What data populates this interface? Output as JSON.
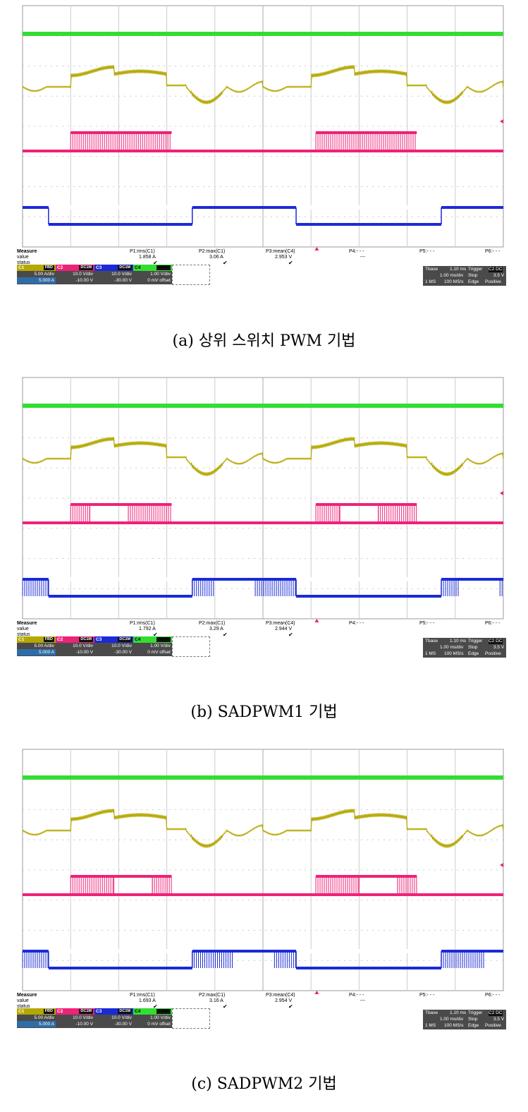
{
  "chart_data": [
    {
      "type": "line",
      "caption": "(a) 상위 스위치 PWM 기법",
      "series": [
        {
          "name": "C4",
          "color": "#33dd33",
          "description": "flat green trace"
        },
        {
          "name": "C1",
          "color": "#b5a800",
          "description": "ripple current trace"
        },
        {
          "name": "C2",
          "color": "#ee2277",
          "description": "PWM pulse trace, pulses during 0.1-0.31 and 0.61-0.82 of width"
        },
        {
          "name": "C3",
          "color": "#1a2bd6",
          "description": "square wave, low 0.05-0.35 and 0.57-0.87"
        }
      ],
      "measure": {
        "label": "Measure",
        "row_value": "value",
        "row_status": "status",
        "params": [
          {
            "name": "P1:rms(C1)",
            "value": "1.858 A",
            "check": "✔"
          },
          {
            "name": "P2:max(C1)",
            "value": "3.06 A",
            "check": "✔"
          },
          {
            "name": "P3:mean(C4)",
            "value": "2.953 V",
            "check": "✔"
          },
          {
            "name": "P4:- - -",
            "value": "---",
            "check": ""
          },
          {
            "name": "P5:- - -",
            "value": "",
            "check": ""
          },
          {
            "name": "P6:- - -",
            "value": "",
            "check": ""
          }
        ]
      },
      "channels": [
        {
          "id": "C1",
          "tag": "FBD",
          "scale": "5.00 A/div",
          "offset": "5.000 A",
          "color": "#b5a800"
        },
        {
          "id": "C2",
          "tag": "DC1M",
          "scale": "10.0 V/div",
          "offset": "-10.00 V",
          "color": "#ee2277"
        },
        {
          "id": "C3",
          "tag": "DC1M",
          "scale": "10.0 V/div",
          "offset": "-30.00 V",
          "color": "#1a2bd6"
        },
        {
          "id": "C4",
          "tag": "DC1M",
          "scale": "1.00 V/div",
          "offset": "0 mV offset",
          "color": "#33dd33"
        }
      ],
      "timebase": {
        "tbase_label": "Tbase",
        "tbase_value": "1.10 ms",
        "trigger_label": "Trigger",
        "trigger_tag": "C2 DC",
        "div": "1.00 ms/div",
        "mode": "Stop",
        "level": "3.5 V",
        "samples": "1 MS",
        "rate": "100 MS/s",
        "type": "Edge",
        "slope": "Positive"
      }
    },
    {
      "type": "line",
      "caption": "(b) SADPWM1 기법",
      "series": [
        {
          "name": "C4",
          "color": "#33dd33",
          "description": "flat green trace"
        },
        {
          "name": "C1",
          "color": "#b5a800",
          "description": "ripple current trace"
        },
        {
          "name": "C2",
          "color": "#ee2277",
          "description": "PWM pulse with high plateau"
        },
        {
          "name": "C3",
          "color": "#1a2bd6",
          "description": "square wave with PWM bursts at edges"
        }
      ],
      "measure": {
        "label": "Measure",
        "row_value": "value",
        "row_status": "status",
        "params": [
          {
            "name": "P1:rms(C1)",
            "value": "1.792 A",
            "check": "✔"
          },
          {
            "name": "P2:max(C1)",
            "value": "3.29 A",
            "check": "✔"
          },
          {
            "name": "P3:mean(C4)",
            "value": "2.944 V",
            "check": "✔"
          },
          {
            "name": "P4:- - -",
            "value": "",
            "check": ""
          },
          {
            "name": "P5:- - -",
            "value": "",
            "check": ""
          },
          {
            "name": "P6:- - -",
            "value": "",
            "check": ""
          }
        ]
      },
      "channels": [
        {
          "id": "C1",
          "tag": "FBD",
          "scale": "5.00 A/div",
          "offset": "5.000 A",
          "color": "#b5a800"
        },
        {
          "id": "C2",
          "tag": "DC1M",
          "scale": "10.0 V/div",
          "offset": "-10.00 V",
          "color": "#ee2277"
        },
        {
          "id": "C3",
          "tag": "DC1M",
          "scale": "10.0 V/div",
          "offset": "-30.00 V",
          "color": "#1a2bd6"
        },
        {
          "id": "C4",
          "tag": "DC1M",
          "scale": "1.00 V/div",
          "offset": "0 mV offset",
          "color": "#33dd33"
        }
      ],
      "timebase": {
        "tbase_label": "Tbase",
        "tbase_value": "1.10 ms",
        "trigger_label": "Trigger",
        "trigger_tag": "C2 DC",
        "div": "1.00 ms/div",
        "mode": "Stop",
        "level": "3.5 V",
        "samples": "1 MS",
        "rate": "100 MS/s",
        "type": "Edge",
        "slope": "Positive"
      }
    },
    {
      "type": "line",
      "caption": "(c) SADPWM2 기법",
      "series": [
        {
          "name": "C4",
          "color": "#33dd33",
          "description": "flat green trace"
        },
        {
          "name": "C1",
          "color": "#b5a800",
          "description": "ripple current trace"
        },
        {
          "name": "C2",
          "color": "#ee2277",
          "description": "PWM pulse with high plateau"
        },
        {
          "name": "C3",
          "color": "#1a2bd6",
          "description": "square wave with PWM bursts"
        }
      ],
      "measure": {
        "label": "Measure",
        "row_value": "value",
        "row_status": "status",
        "params": [
          {
            "name": "P1:rms(C1)",
            "value": "1.693 A",
            "check": "✔"
          },
          {
            "name": "P2:max(C1)",
            "value": "3.16 A",
            "check": "✔"
          },
          {
            "name": "P3:mean(C4)",
            "value": "2.954 V",
            "check": "✔"
          },
          {
            "name": "P4:- - -",
            "value": "---",
            "check": ""
          },
          {
            "name": "P5:- - -",
            "value": "",
            "check": ""
          },
          {
            "name": "P6:- - -",
            "value": "",
            "check": ""
          }
        ]
      },
      "channels": [
        {
          "id": "C1",
          "tag": "FBD",
          "scale": "5.00 A/div",
          "offset": "5.000 A",
          "color": "#b5a800"
        },
        {
          "id": "C2",
          "tag": "DC1M",
          "scale": "10.0 V/div",
          "offset": "-10.00 V",
          "color": "#ee2277"
        },
        {
          "id": "C3",
          "tag": "DC1M",
          "scale": "10.0 V/div",
          "offset": "-30.00 V",
          "color": "#1a2bd6"
        },
        {
          "id": "C4",
          "tag": "DC1M",
          "scale": "1.00 V/div",
          "offset": "0 mV offset",
          "color": "#33dd33"
        }
      ],
      "timebase": {
        "tbase_label": "Tbase",
        "tbase_value": "1.10 ms",
        "trigger_label": "Trigger",
        "trigger_tag": "C2 DC",
        "div": "1.00 ms/div",
        "mode": "Stop",
        "level": "3.5 V",
        "samples": "1 MS",
        "rate": "100 MS/s",
        "type": "Edge",
        "slope": "Positive"
      }
    }
  ]
}
